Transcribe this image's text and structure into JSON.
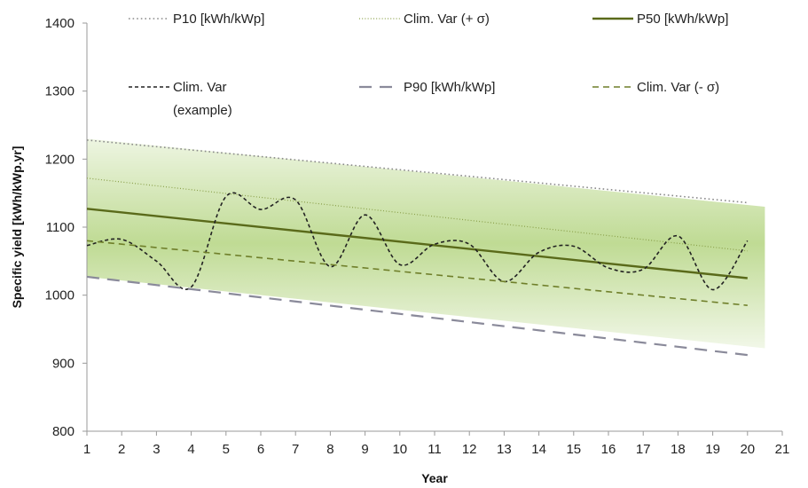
{
  "chart_data": {
    "type": "line",
    "xlabel": "Year",
    "ylabel": "Specific yield  [kWh/kWp.yr]",
    "xlim": [
      1,
      21
    ],
    "ylim": [
      800,
      1400
    ],
    "x_ticks": [
      "1",
      "2",
      "3",
      "4",
      "5",
      "6",
      "7",
      "8",
      "9",
      "10",
      "11",
      "12",
      "13",
      "14",
      "15",
      "16",
      "17",
      "18",
      "19",
      "20",
      "21"
    ],
    "y_ticks": [
      "800",
      "900",
      "1000",
      "1100",
      "1200",
      "1300",
      "1400"
    ],
    "grid": false,
    "legend_position": "top",
    "band": {
      "x_start": 1,
      "x_end": 20.5,
      "upper_start": 1230,
      "upper_end": 1130,
      "lower_start": 1027,
      "lower_end": 922,
      "color": "#8bbd3c"
    },
    "series": [
      {
        "name": "P10 [kWh/kWp]",
        "color": "#8a8a8a",
        "style": "dotted",
        "width": 1.6,
        "x": [
          1,
          20
        ],
        "y": [
          1228,
          1136
        ]
      },
      {
        "name": "Clim. Var (+ σ)",
        "color": "#8aa04a",
        "style": "dotted-fine",
        "width": 1.2,
        "x": [
          1,
          20
        ],
        "y": [
          1172,
          1065
        ]
      },
      {
        "name": "P50 [kWh/kWp]",
        "color": "#5a6a1a",
        "style": "solid",
        "width": 2.4,
        "x": [
          1,
          20
        ],
        "y": [
          1127,
          1025
        ]
      },
      {
        "name": "Clim. Var",
        "name2": "(example)",
        "color": "#222222",
        "style": "short-dash",
        "width": 1.6,
        "x": [
          1,
          2,
          3,
          4,
          5,
          6,
          7,
          8,
          9,
          10,
          11,
          12,
          13,
          14,
          15,
          16,
          17,
          18,
          19,
          20
        ],
        "y": [
          1073,
          1082,
          1050,
          1012,
          1145,
          1126,
          1140,
          1042,
          1118,
          1045,
          1075,
          1075,
          1020,
          1063,
          1072,
          1040,
          1038,
          1087,
          1008,
          1080
        ]
      },
      {
        "name": "P90 [kWh/kWp]",
        "color": "#8a8a9a",
        "style": "long-dash",
        "width": 2.2,
        "x": [
          1,
          20
        ],
        "y": [
          1027,
          912
        ]
      },
      {
        "name": "Clim. Var (- σ)",
        "color": "#6f7f2a",
        "style": "dash",
        "width": 1.6,
        "x": [
          1,
          20
        ],
        "y": [
          1080,
          985
        ]
      }
    ]
  }
}
